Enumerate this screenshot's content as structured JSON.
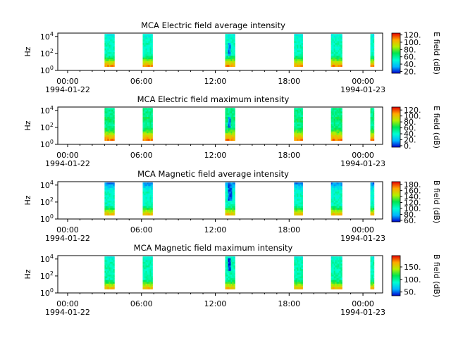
{
  "chart_data": [
    {
      "type": "heatmap",
      "title": "MCA  Electric field average intensity",
      "ylabel": "Hz",
      "ylim_exponents": [
        0,
        4.4
      ],
      "yticks": [
        {
          "base": "10",
          "exp": "0",
          "value": 0
        },
        {
          "base": "10",
          "exp": "2",
          "value": 2
        },
        {
          "base": "10",
          "exp": "4",
          "value": 4
        }
      ],
      "xticks": [
        {
          "time": "00:00",
          "date": "1994-01-22",
          "hour": 0
        },
        {
          "time": "06:00",
          "date": "",
          "hour": 6
        },
        {
          "time": "12:00",
          "date": "",
          "hour": 12
        },
        {
          "time": "18:00",
          "date": "",
          "hour": 18
        },
        {
          "time": "00:00",
          "date": "1994-01-23",
          "hour": 24
        }
      ],
      "colorbar": {
        "label": "E field (dB)",
        "min": 15,
        "max": 125,
        "ticks": [
          "120.",
          "100.",
          "80.",
          "60.",
          "40.",
          "20."
        ],
        "tick_values": [
          120,
          100,
          80,
          60,
          40,
          20
        ]
      },
      "passes": [
        [
          3.0,
          3.8
        ],
        [
          6.1,
          6.9
        ],
        [
          12.8,
          13.6
        ],
        [
          18.4,
          19.1
        ],
        [
          21.4,
          22.3
        ],
        [
          24.6,
          24.9
        ]
      ],
      "profile": "e_avg"
    },
    {
      "type": "heatmap",
      "title": "MCA  Electric field maximum intensity",
      "ylabel": "Hz",
      "ylim_exponents": [
        0,
        4.4
      ],
      "yticks": [
        {
          "base": "10",
          "exp": "0",
          "value": 0
        },
        {
          "base": "10",
          "exp": "2",
          "value": 2
        },
        {
          "base": "10",
          "exp": "4",
          "value": 4
        }
      ],
      "xticks": [
        {
          "time": "00:00",
          "date": "1994-01-22",
          "hour": 0
        },
        {
          "time": "06:00",
          "date": "",
          "hour": 6
        },
        {
          "time": "12:00",
          "date": "",
          "hour": 12
        },
        {
          "time": "18:00",
          "date": "",
          "hour": 18
        },
        {
          "time": "00:00",
          "date": "1994-01-23",
          "hour": 24
        }
      ],
      "colorbar": {
        "label": "E field (dB)",
        "min": -5,
        "max": 130,
        "ticks": [
          "120.",
          "100.",
          "80.",
          "60.",
          "40.",
          "20.",
          "0."
        ],
        "tick_values": [
          120,
          100,
          80,
          60,
          40,
          20,
          0
        ]
      },
      "passes": [
        [
          3.0,
          3.8
        ],
        [
          6.1,
          6.9
        ],
        [
          12.8,
          13.6
        ],
        [
          18.4,
          19.1
        ],
        [
          21.4,
          22.3
        ],
        [
          24.6,
          24.9
        ]
      ],
      "profile": "e_max"
    },
    {
      "type": "heatmap",
      "title": "MCA  Magnetic field average intensity",
      "ylabel": "Hz",
      "ylim_exponents": [
        0,
        4.4
      ],
      "yticks": [
        {
          "base": "10",
          "exp": "0",
          "value": 0
        },
        {
          "base": "10",
          "exp": "2",
          "value": 2
        },
        {
          "base": "10",
          "exp": "4",
          "value": 4
        }
      ],
      "xticks": [
        {
          "time": "00:00",
          "date": "1994-01-22",
          "hour": 0
        },
        {
          "time": "06:00",
          "date": "",
          "hour": 6
        },
        {
          "time": "12:00",
          "date": "",
          "hour": 12
        },
        {
          "time": "18:00",
          "date": "",
          "hour": 18
        },
        {
          "time": "00:00",
          "date": "1994-01-23",
          "hour": 24
        }
      ],
      "colorbar": {
        "label": "B field (dB)",
        "min": 55,
        "max": 190,
        "ticks": [
          "180.",
          "160.",
          "140.",
          "120.",
          "100.",
          "80.",
          "60."
        ],
        "tick_values": [
          180,
          160,
          140,
          120,
          100,
          80,
          60
        ]
      },
      "passes": [
        [
          3.0,
          3.8
        ],
        [
          6.1,
          6.9
        ],
        [
          12.8,
          13.6
        ],
        [
          18.4,
          19.1
        ],
        [
          21.4,
          22.3
        ],
        [
          24.6,
          24.9
        ]
      ],
      "profile": "b_avg"
    },
    {
      "type": "heatmap",
      "title": "MCA  Magnetic field maximum intensity",
      "ylabel": "Hz",
      "ylim_exponents": [
        0,
        4.4
      ],
      "yticks": [
        {
          "base": "10",
          "exp": "0",
          "value": 0
        },
        {
          "base": "10",
          "exp": "2",
          "value": 2
        },
        {
          "base": "10",
          "exp": "4",
          "value": 4
        }
      ],
      "xticks": [
        {
          "time": "00:00",
          "date": "1994-01-22",
          "hour": 0
        },
        {
          "time": "06:00",
          "date": "",
          "hour": 6
        },
        {
          "time": "12:00",
          "date": "",
          "hour": 12
        },
        {
          "time": "18:00",
          "date": "",
          "hour": 18
        },
        {
          "time": "00:00",
          "date": "1994-01-23",
          "hour": 24
        }
      ],
      "colorbar": {
        "label": "B field (dB)",
        "min": 35,
        "max": 195,
        "ticks": [
          "150.",
          "100.",
          "50."
        ],
        "tick_values": [
          150,
          100,
          50
        ]
      },
      "passes": [
        [
          3.0,
          3.8
        ],
        [
          6.1,
          6.9
        ],
        [
          12.8,
          13.6
        ],
        [
          18.4,
          19.1
        ],
        [
          21.4,
          22.3
        ],
        [
          24.6,
          24.9
        ]
      ],
      "profile": "b_max"
    }
  ]
}
